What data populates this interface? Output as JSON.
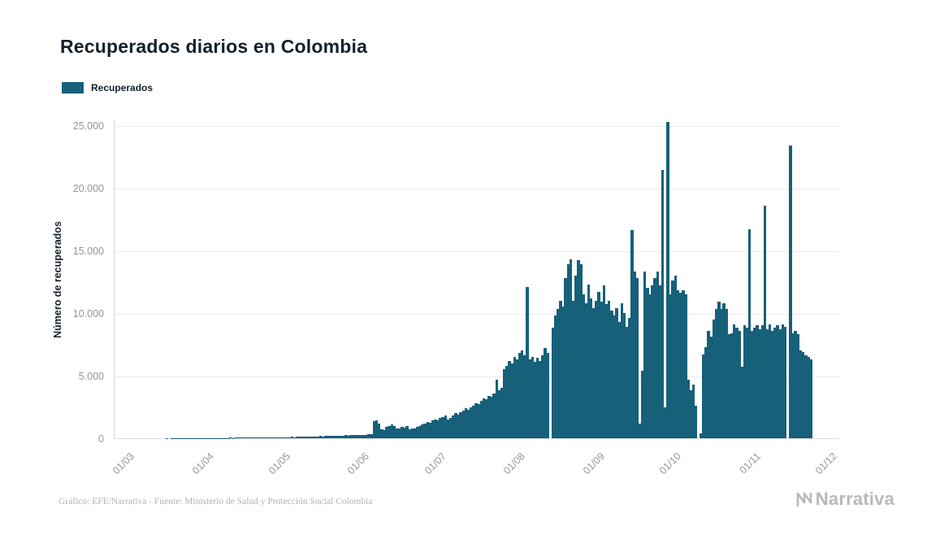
{
  "page": {
    "title": "Recuperados diarios en Colombia",
    "source_credit": "Gráfico: EFE/Narrativa - Fuente: Ministerio de Salud y Protección Social Colombia",
    "brand": "Narrativa"
  },
  "legend": {
    "label": "Recuperados"
  },
  "colors": {
    "bar": "#16607a",
    "title_text": "#14202c",
    "axis_text": "#969696",
    "grid": "#ebebeb",
    "footer_text": "#b3b3b3",
    "brand_text": "#b9b9b9"
  },
  "chart_data": {
    "type": "bar",
    "title": "Recuperados diarios en Colombia",
    "xlabel": "",
    "ylabel": "Número de recuperados",
    "legend": [
      "Recuperados"
    ],
    "grid": "horizontal",
    "legend_position": "top-left",
    "ylim": [
      0,
      25500
    ],
    "yticks": [
      0,
      5000,
      10000,
      15000,
      20000,
      25000
    ],
    "ytick_labels": [
      "0",
      "5.000",
      "10.000",
      "15.000",
      "20.000",
      "25.000"
    ],
    "xtick_labels": [
      "01/03",
      "01/04",
      "01/05",
      "01/06",
      "01/07",
      "01/08",
      "01/09",
      "01/10",
      "01/11",
      "01/12"
    ],
    "xtick_day_index": [
      0,
      31,
      61,
      92,
      122,
      153,
      184,
      214,
      245,
      275
    ],
    "x_offset_days": 8,
    "x_domain_days": 284,
    "start_label": "01/03",
    "values": [
      0,
      0,
      0,
      0,
      0,
      0,
      0,
      0,
      0,
      0,
      0,
      0,
      1,
      0,
      1,
      2,
      1,
      3,
      2,
      4,
      3,
      5,
      6,
      5,
      8,
      10,
      9,
      12,
      15,
      14,
      16,
      10,
      18,
      15,
      22,
      30,
      25,
      35,
      28,
      40,
      45,
      38,
      50,
      42,
      55,
      60,
      48,
      65,
      58,
      70,
      62,
      75,
      68,
      80,
      72,
      85,
      78,
      90,
      82,
      95,
      88,
      100,
      95,
      110,
      120,
      105,
      130,
      140,
      125,
      150,
      160,
      145,
      170,
      155,
      180,
      190,
      175,
      200,
      185,
      210,
      220,
      205,
      230,
      215,
      240,
      250,
      235,
      260,
      245,
      270,
      280,
      300,
      350,
      1350,
      1400,
      1200,
      700,
      650,
      900,
      1000,
      1100,
      950,
      800,
      750,
      900,
      850,
      950,
      700,
      750,
      800,
      900,
      1000,
      1100,
      1200,
      1300,
      1250,
      1400,
      1500,
      1450,
      1600,
      1700,
      1800,
      1500,
      1600,
      1800,
      2000,
      1900,
      2100,
      2200,
      2400,
      2300,
      2500,
      2600,
      2800,
      2700,
      3000,
      3200,
      3100,
      3400,
      3300,
      3600,
      4700,
      3800,
      4000,
      5500,
      5800,
      6200,
      6000,
      6500,
      6300,
      6800,
      7000,
      6600,
      12050,
      6300,
      6500,
      6100,
      6400,
      6200,
      6600,
      7200,
      6800,
      0,
      8800,
      9800,
      10300,
      11000,
      10500,
      12800,
      13900,
      14300,
      11000,
      13000,
      14200,
      13900,
      11500,
      10800,
      12300,
      11200,
      10400,
      11000,
      11700,
      10900,
      12200,
      10700,
      11000,
      10200,
      9800,
      10400,
      9300,
      10800,
      10000,
      8900,
      9600,
      16600,
      13300,
      12800,
      1200,
      5400,
      13300,
      12000,
      11500,
      12200,
      12800,
      13300,
      12200,
      21400,
      2500,
      25252,
      11500,
      12600,
      13000,
      11800,
      11600,
      11800,
      11500,
      4700,
      3800,
      4300,
      2600,
      0,
      400,
      6700,
      7300,
      8600,
      8100,
      9500,
      10300,
      10900,
      10300,
      10800,
      10300,
      8300,
      8400,
      9100,
      8800,
      8600,
      5700,
      9000,
      8800,
      16700,
      8600,
      8800,
      9000,
      8700,
      9000,
      18600,
      8700,
      9100,
      8600,
      8800,
      9000,
      8700,
      9100,
      8900,
      0,
      23400,
      8400,
      8600,
      8300,
      7000,
      6900,
      6600,
      6500,
      6300
    ]
  }
}
